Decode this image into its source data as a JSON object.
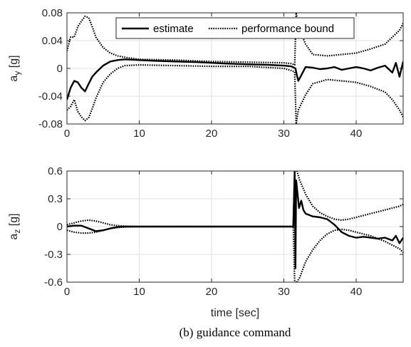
{
  "caption": "(b)  guidance  command",
  "chart_data": [
    {
      "type": "line",
      "ylabel_base": "a",
      "ylabel_sub": "y",
      "ylabel_unit": " [g]",
      "xlim": [
        0,
        46.5
      ],
      "ylim": [
        -0.08,
        0.08
      ],
      "xticks": [
        0,
        10,
        20,
        30,
        40
      ],
      "xtick_labels": [
        "0",
        "10",
        "20",
        "30",
        "40"
      ],
      "yticks": [
        -0.08,
        -0.04,
        0,
        0.04,
        0.08
      ],
      "ytick_labels": [
        "-0.08",
        "-0.04",
        "0",
        "0.04",
        "0.08"
      ],
      "grid": true,
      "legend": [
        "estimate",
        "performance bound"
      ],
      "legend_position": "top-right",
      "series": [
        {
          "name": "estimate",
          "style": "solid",
          "x": [
            0,
            0.5,
            1,
            1.5,
            2,
            2.5,
            3,
            3.5,
            4,
            5,
            6,
            7,
            8,
            10,
            12,
            15,
            18,
            20,
            22,
            25,
            28,
            30,
            31,
            31.6,
            31.8,
            32,
            32.5,
            33,
            34,
            35,
            36,
            37,
            38,
            39,
            40,
            41,
            42,
            43,
            44,
            45,
            45.5,
            46,
            46.5
          ],
          "y": [
            -0.045,
            -0.028,
            -0.018,
            -0.02,
            -0.028,
            -0.033,
            -0.022,
            -0.012,
            -0.006,
            0.004,
            0.01,
            0.012,
            0.013,
            0.012,
            0.011,
            0.01,
            0.009,
            0.008,
            0.007,
            0.006,
            0.005,
            0.004,
            0.003,
            0.0,
            -0.01,
            -0.018,
            -0.008,
            0.002,
            0.001,
            -0.001,
            0.0,
            0.002,
            -0.002,
            0.0,
            0.002,
            0.0,
            -0.003,
            0.001,
            0.004,
            -0.006,
            0.008,
            -0.012,
            0.01
          ]
        },
        {
          "name": "performance bound",
          "style": "dotted",
          "x": [
            0,
            0.5,
            1,
            1.5,
            2,
            2.5,
            3,
            3.5,
            4,
            5,
            6,
            7,
            8,
            10,
            15,
            20,
            25,
            30,
            31,
            31.5,
            31.7,
            32,
            33,
            34,
            36,
            38,
            40,
            42,
            44,
            45,
            46,
            46.5
          ],
          "y": [
            0.025,
            0.045,
            0.045,
            0.06,
            0.068,
            0.075,
            0.073,
            0.06,
            0.045,
            0.03,
            0.022,
            0.018,
            0.016,
            0.013,
            0.012,
            0.01,
            0.009,
            0.008,
            0.007,
            0.005,
            0.08,
            0.06,
            0.035,
            0.02,
            0.018,
            0.02,
            0.022,
            0.028,
            0.035,
            0.045,
            0.055,
            0.065
          ]
        },
        {
          "name": "performance bound",
          "style": "dotted",
          "x": [
            0,
            0.5,
            1,
            1.5,
            2,
            2.5,
            3,
            3.5,
            4,
            5,
            6,
            7,
            8,
            10,
            15,
            20,
            25,
            30,
            31,
            31.5,
            31.7,
            32,
            33,
            34,
            36,
            38,
            40,
            42,
            44,
            45,
            46,
            46.5
          ],
          "y": [
            -0.06,
            -0.055,
            -0.045,
            -0.062,
            -0.07,
            -0.075,
            -0.071,
            -0.058,
            -0.043,
            -0.02,
            -0.008,
            0.0,
            0.004,
            0.005,
            0.004,
            0.003,
            0.003,
            0.0,
            -0.003,
            -0.005,
            -0.08,
            -0.06,
            -0.038,
            -0.022,
            -0.016,
            -0.018,
            -0.02,
            -0.026,
            -0.034,
            -0.045,
            -0.06,
            -0.07
          ]
        }
      ]
    },
    {
      "type": "line",
      "ylabel_base": "a",
      "ylabel_sub": "z",
      "ylabel_unit": " [g]",
      "xlabel": "time [sec]",
      "xlim": [
        0,
        46.5
      ],
      "ylim": [
        -0.6,
        0.6
      ],
      "xticks": [
        0,
        10,
        20,
        30,
        40
      ],
      "xtick_labels": [
        "0",
        "10",
        "20",
        "30",
        "40"
      ],
      "yticks": [
        -0.6,
        -0.3,
        0,
        0.3,
        0.6
      ],
      "ytick_labels": [
        "-0.6",
        "-0.3",
        "0",
        "0.3",
        "0.6"
      ],
      "grid": true,
      "series": [
        {
          "name": "estimate",
          "style": "solid",
          "x": [
            0,
            1,
            2,
            3,
            4,
            5,
            6,
            7,
            8,
            10,
            15,
            20,
            25,
            30,
            31.3,
            31.5,
            31.6,
            31.7,
            31.9,
            32.1,
            32.4,
            32.7,
            33,
            34,
            35,
            36,
            37,
            38,
            39,
            40,
            41,
            42,
            43,
            44,
            45,
            45.5,
            46,
            46.5
          ],
          "y": [
            0,
            0.01,
            0.01,
            -0.02,
            -0.05,
            -0.04,
            -0.02,
            -0.005,
            0,
            0,
            0,
            0,
            0,
            0,
            0,
            0.6,
            -0.45,
            0.5,
            0.35,
            0.2,
            0.28,
            0.18,
            0.14,
            0.11,
            0.1,
            0.08,
            0.02,
            -0.06,
            -0.1,
            -0.12,
            -0.11,
            -0.12,
            -0.13,
            -0.12,
            -0.15,
            -0.1,
            -0.18,
            -0.12
          ]
        },
        {
          "name": "performance bound",
          "style": "dotted",
          "x": [
            0,
            1,
            2,
            3,
            4,
            5,
            6,
            7,
            8,
            10,
            15,
            20,
            25,
            30,
            31.3,
            31.5,
            31.8,
            32.2,
            33,
            34,
            35,
            36,
            37,
            38,
            39,
            40,
            41,
            42,
            43,
            44,
            45,
            46,
            46.5
          ],
          "y": [
            0.02,
            0.04,
            0.06,
            0.07,
            0.06,
            0.04,
            0.02,
            0.01,
            0.005,
            0,
            0,
            0,
            0,
            0,
            0,
            0.6,
            0.6,
            0.5,
            0.35,
            0.22,
            0.15,
            0.11,
            0.08,
            0.07,
            0.08,
            0.1,
            0.12,
            0.14,
            0.16,
            0.18,
            0.2,
            0.22,
            0.24
          ]
        },
        {
          "name": "performance bound",
          "style": "dotted",
          "x": [
            0,
            1,
            2,
            3,
            4,
            5,
            6,
            7,
            8,
            10,
            15,
            20,
            25,
            30,
            31.3,
            31.5,
            31.8,
            32.2,
            33,
            34,
            35,
            36,
            37,
            38,
            39,
            40,
            41,
            42,
            43,
            44,
            45,
            46,
            46.5
          ],
          "y": [
            -0.04,
            -0.06,
            -0.07,
            -0.07,
            -0.06,
            -0.04,
            -0.02,
            -0.01,
            -0.005,
            0,
            0,
            0,
            0,
            0,
            0,
            -0.6,
            -0.6,
            -0.55,
            -0.38,
            -0.25,
            -0.15,
            -0.08,
            -0.04,
            -0.03,
            -0.04,
            -0.06,
            -0.08,
            -0.1,
            -0.13,
            -0.16,
            -0.2,
            -0.24,
            -0.28
          ]
        }
      ]
    }
  ]
}
